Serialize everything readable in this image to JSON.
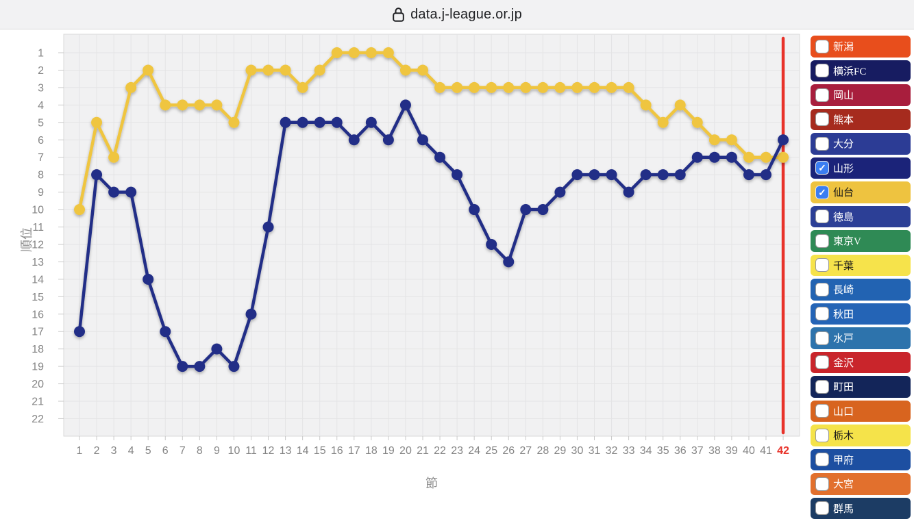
{
  "browser": {
    "url": "data.j-league.or.jp",
    "lock_icon": "lock-icon"
  },
  "chart_data": {
    "type": "line",
    "title": "",
    "xlabel": "節",
    "ylabel": "順位",
    "x_ticks": [
      1,
      2,
      3,
      4,
      5,
      6,
      7,
      8,
      9,
      10,
      11,
      12,
      13,
      14,
      15,
      16,
      17,
      18,
      19,
      20,
      21,
      22,
      23,
      24,
      25,
      26,
      27,
      28,
      29,
      30,
      31,
      32,
      33,
      34,
      35,
      36,
      37,
      38,
      39,
      40,
      41,
      42
    ],
    "y_ticks": [
      1,
      2,
      3,
      4,
      5,
      6,
      7,
      8,
      9,
      10,
      11,
      12,
      13,
      14,
      15,
      16,
      17,
      18,
      19,
      20,
      21,
      22
    ],
    "y_inverted": true,
    "xlim": [
      1,
      42
    ],
    "ylim": [
      1,
      22
    ],
    "grid": true,
    "legend_position": "right",
    "current_round": 42,
    "current_round_color": "#e8322a",
    "current_round_label_color": "#e8322a",
    "series": [
      {
        "name": "仙台",
        "color": "#efc53f",
        "values": [
          10,
          5,
          7,
          3,
          2,
          4,
          4,
          4,
          4,
          5,
          2,
          2,
          2,
          3,
          2,
          1,
          1,
          1,
          1,
          2,
          2,
          3,
          3,
          3,
          3,
          3,
          3,
          3,
          3,
          3,
          3,
          3,
          3,
          4,
          5,
          4,
          5,
          6,
          6,
          7,
          7,
          7
        ]
      },
      {
        "name": "山形",
        "color": "#222e87",
        "values": [
          17,
          8,
          9,
          9,
          14,
          17,
          19,
          19,
          18,
          19,
          16,
          11,
          5,
          5,
          5,
          5,
          6,
          5,
          6,
          4,
          6,
          7,
          8,
          10,
          12,
          13,
          10,
          10,
          9,
          8,
          8,
          8,
          9,
          8,
          8,
          8,
          7,
          7,
          7,
          8,
          8,
          6
        ]
      }
    ]
  },
  "legend": {
    "checkmark": "✓",
    "items": [
      {
        "name": "新潟",
        "color": "#e84e1c",
        "text_color": "#ffffff",
        "checked": false
      },
      {
        "name": "横浜FC",
        "color": "#171c61",
        "text_color": "#ffffff",
        "checked": false
      },
      {
        "name": "岡山",
        "color": "#a81e3d",
        "text_color": "#ffffff",
        "checked": false
      },
      {
        "name": "熊本",
        "color": "#a62b1e",
        "text_color": "#ffffff",
        "checked": false
      },
      {
        "name": "大分",
        "color": "#2c3c95",
        "text_color": "#ffffff",
        "checked": false
      },
      {
        "name": "山形",
        "color": "#1b2379",
        "text_color": "#ffffff",
        "checked": true
      },
      {
        "name": "仙台",
        "color": "#eec340",
        "text_color": "#1a1a1a",
        "checked": true
      },
      {
        "name": "徳島",
        "color": "#2c3f96",
        "text_color": "#ffffff",
        "checked": false
      },
      {
        "name": "東京V",
        "color": "#2f8a55",
        "text_color": "#ffffff",
        "checked": false
      },
      {
        "name": "千葉",
        "color": "#f6e34b",
        "text_color": "#1a1a1a",
        "checked": false
      },
      {
        "name": "長崎",
        "color": "#2263b2",
        "text_color": "#ffffff",
        "checked": false
      },
      {
        "name": "秋田",
        "color": "#2464b6",
        "text_color": "#ffffff",
        "checked": false
      },
      {
        "name": "水戸",
        "color": "#2d73ac",
        "text_color": "#ffffff",
        "checked": false
      },
      {
        "name": "金沢",
        "color": "#c9252b",
        "text_color": "#ffffff",
        "checked": false
      },
      {
        "name": "町田",
        "color": "#132559",
        "text_color": "#ffffff",
        "checked": false
      },
      {
        "name": "山口",
        "color": "#d8641f",
        "text_color": "#ffffff",
        "checked": false
      },
      {
        "name": "栃木",
        "color": "#f5e34a",
        "text_color": "#1a1a1a",
        "checked": false
      },
      {
        "name": "甲府",
        "color": "#1d4fa1",
        "text_color": "#ffffff",
        "checked": false
      },
      {
        "name": "大宮",
        "color": "#e2702d",
        "text_color": "#ffffff",
        "checked": false
      },
      {
        "name": "群馬",
        "color": "#1c3c64",
        "text_color": "#ffffff",
        "checked": false
      }
    ]
  }
}
